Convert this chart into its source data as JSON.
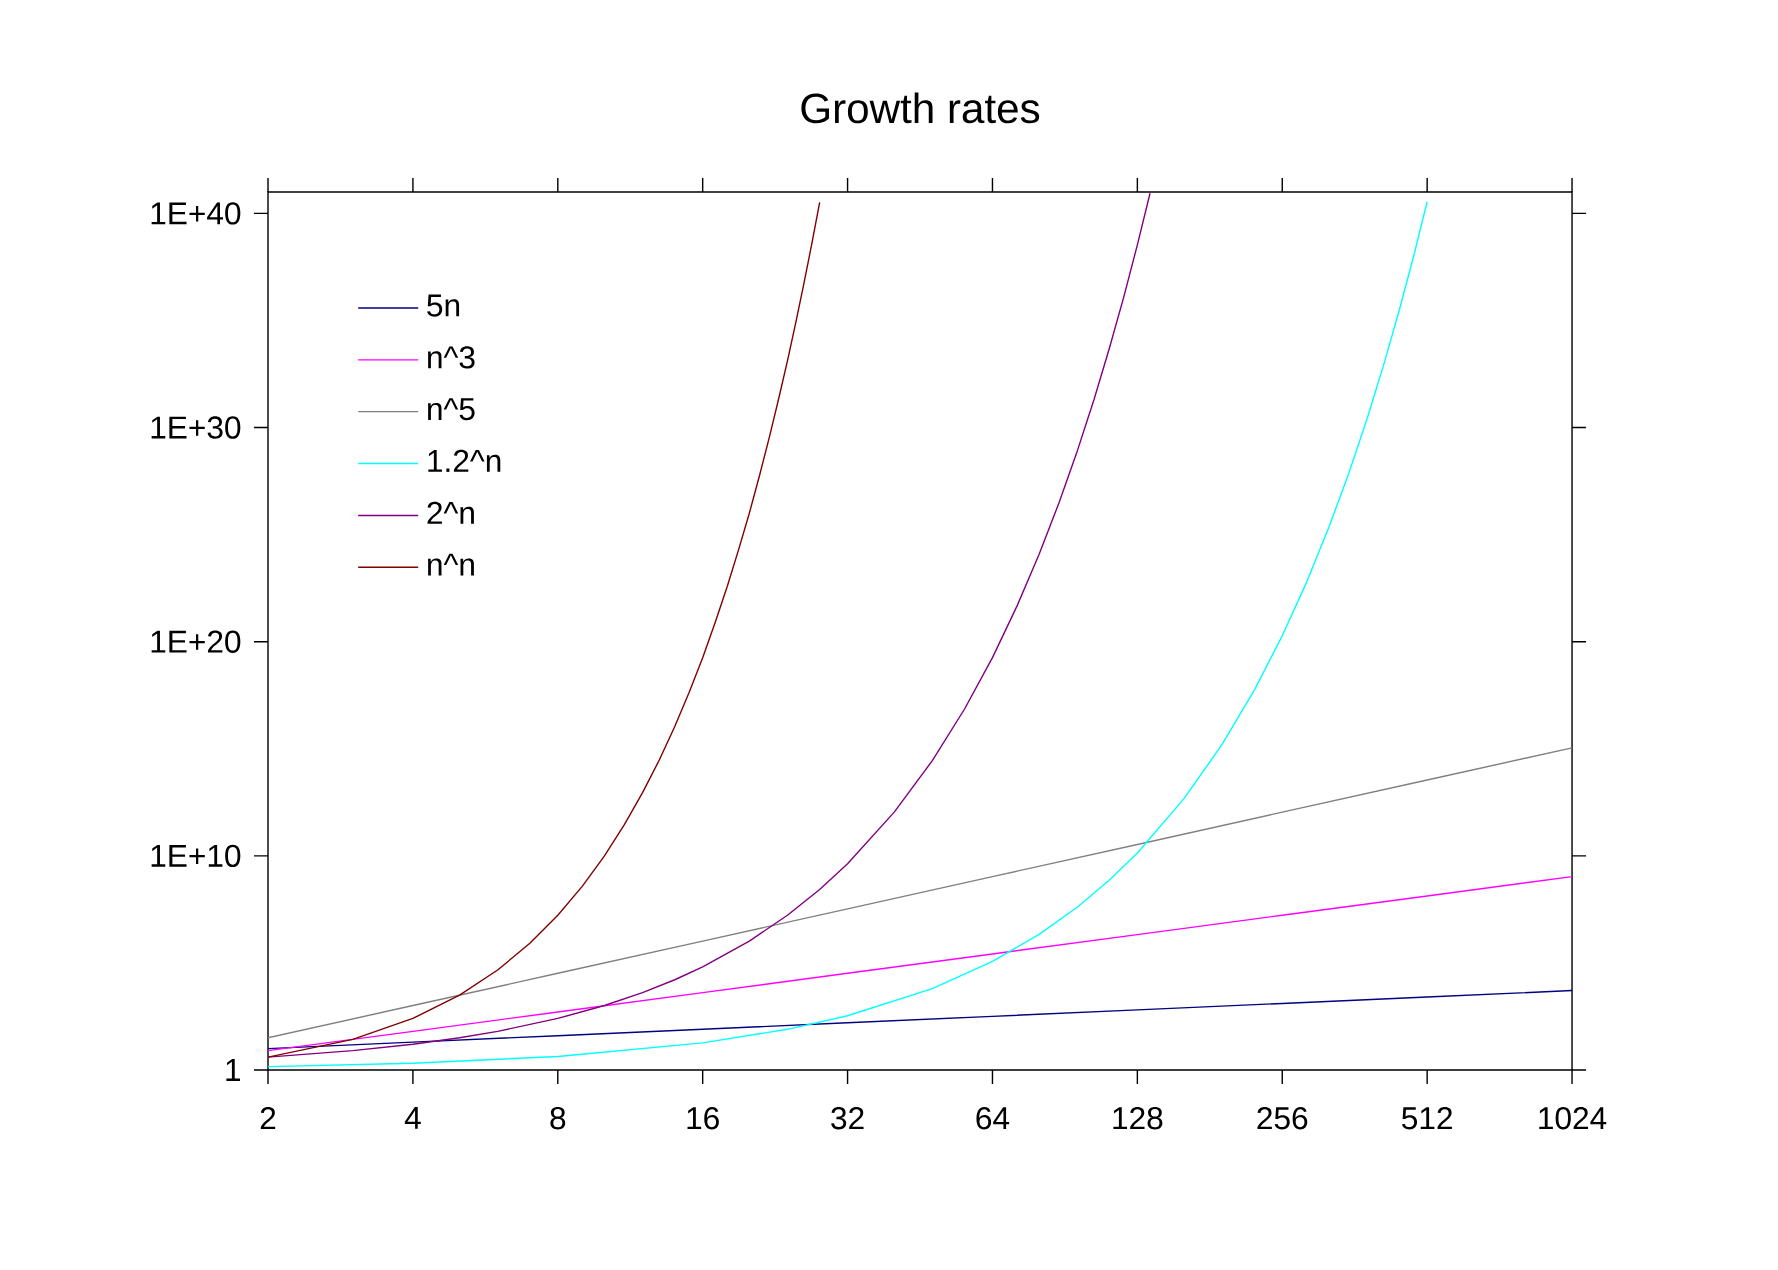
{
  "chart_data": {
    "type": "line",
    "title": "Growth rates",
    "log": "xy",
    "grid": false,
    "legend": "top left",
    "marker": "none",
    "line_style": "solid",
    "xlim": [
      2,
      1024
    ],
    "ylim": [
      1,
      1e+41
    ],
    "xticks": [
      2,
      4,
      8,
      16,
      32,
      64,
      128,
      256,
      512,
      1024
    ],
    "yticks": [
      1,
      {
        "value": 10000000000.0,
        "label": "1E+10"
      },
      {
        "value": 1e+20,
        "label": "1E+20"
      },
      {
        "value": 1e+30,
        "label": "1E+30"
      },
      {
        "value": 1e+40,
        "label": "1E+40"
      }
    ],
    "series": [
      {
        "name": "5n",
        "color": "#000080",
        "x": [
          2,
          4,
          8,
          16,
          32,
          64,
          128,
          256,
          512,
          1024
        ],
        "values": [
          10,
          20,
          40,
          80,
          160,
          320,
          640,
          1280,
          2560,
          5120
        ]
      },
      {
        "name": "n^3",
        "color": "#ff00ff",
        "x": [
          2,
          4,
          8,
          16,
          32,
          64,
          128,
          256,
          512,
          1024
        ],
        "values": [
          8,
          64,
          512,
          4096,
          32768,
          262144,
          2097152,
          16777216,
          134217728,
          1073741824
        ]
      },
      {
        "name": "n^5",
        "color": "#808080",
        "x": [
          2,
          4,
          8,
          16,
          32,
          64,
          128,
          256,
          512,
          1024
        ],
        "values": [
          32,
          1024,
          32768,
          1048576,
          33554432,
          1073741824,
          34000000000.0,
          1100000000000.0,
          35000000000000.0,
          1100000000000000.0
        ]
      },
      {
        "name": "1.2^n",
        "color": "#00ffff",
        "x": [
          2,
          4,
          8,
          16,
          24,
          32,
          48,
          64,
          80,
          96,
          112,
          128,
          160,
          192,
          224,
          256,
          288,
          320,
          352,
          384,
          416,
          448,
          480,
          512
        ],
        "values": [
          1.44,
          2.07,
          4.3,
          18.5,
          79.5,
          342,
          6300.0,
          117000.0,
          2160000.0,
          39900000.0,
          740000000.0,
          13600000000.0,
          4700000000000.0,
          1600000000000000.0,
          5.5e+17,
          1.9e+20,
          6.4e+22,
          2.2e+25,
          7.4e+27,
          2.5e+30,
          8.7e+32,
          3e+35,
          1e+38,
          3.5e+40
        ]
      },
      {
        "name": "2^n",
        "color": "#800080",
        "x": [
          2,
          3,
          4,
          5,
          6,
          8,
          10,
          12,
          14,
          16,
          20,
          24,
          28,
          32,
          40,
          48,
          56,
          64,
          72,
          80,
          88,
          96,
          104,
          112,
          120,
          128,
          136
        ],
        "values": [
          4,
          8,
          16,
          32,
          64,
          256,
          1024,
          4096,
          16384,
          65536,
          1048576,
          16800000.0,
          270000000.0,
          4300000000.0,
          1100000000000.0,
          280000000000000.0,
          7.2e+16,
          1.8e+19,
          4.7e+21,
          1.2e+24,
          3.1e+26,
          7.9e+28,
          2e+31,
          5.2e+33,
          1.3e+36,
          3.4e+38,
          8.7e+40
        ]
      },
      {
        "name": "n^n",
        "color": "#800000",
        "x": [
          2,
          3,
          4,
          5,
          6,
          7,
          8,
          9,
          10,
          11,
          12,
          13,
          14,
          15,
          16,
          17,
          18,
          19,
          20,
          21,
          22,
          23,
          24,
          25,
          26,
          27,
          28
        ],
        "values": [
          4,
          27,
          256,
          3125,
          46656,
          823543,
          16777216,
          387420489,
          10000000000.0,
          285000000000.0,
          8900000000000.0,
          300000000000000.0,
          1.1e+16,
          4.4e+17,
          1.8e+19,
          8.3e+20,
          3.9e+22,
          2e+24,
          1e+26,
          5.8e+27,
          3.4e+29,
          2.1e+31,
          1.3e+33,
          8.9e+34,
          6.2e+36,
          4.4e+38,
          3.3e+40
        ]
      }
    ]
  }
}
